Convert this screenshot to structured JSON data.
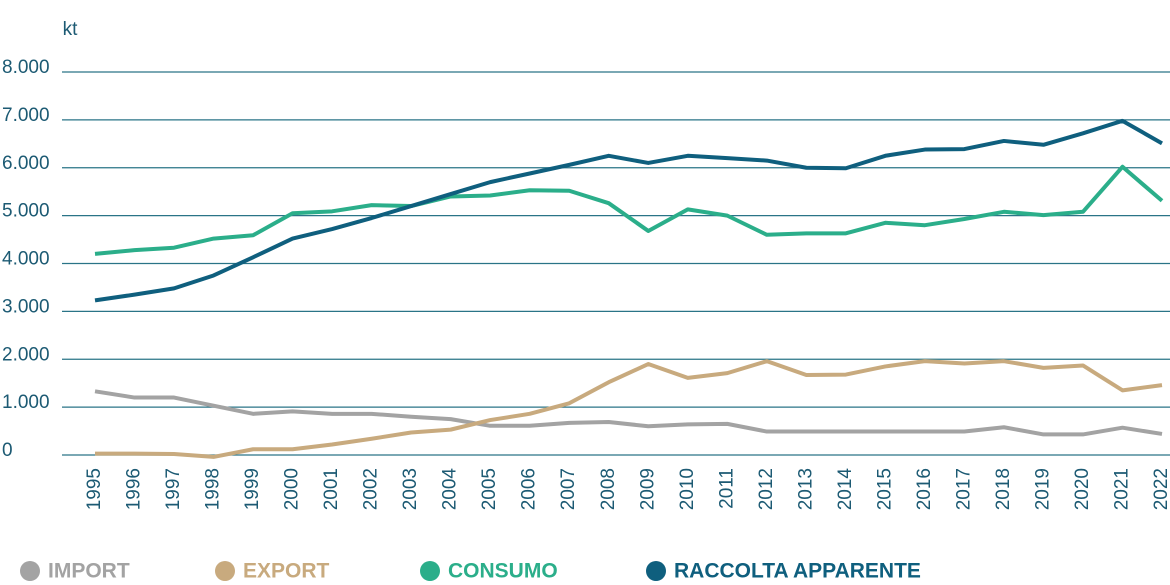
{
  "chart_data": {
    "type": "line",
    "y_label": "kt",
    "categories": [
      "1995",
      "1996",
      "1997",
      "1998",
      "1999",
      "2000",
      "2001",
      "2002",
      "2003",
      "2004",
      "2005",
      "2006",
      "2007",
      "2008",
      "2009",
      "2010",
      "2011",
      "2012",
      "2013",
      "2014",
      "2015",
      "2016",
      "2017",
      "2018",
      "2019",
      "2020",
      "2021",
      "2022"
    ],
    "series": [
      {
        "name": "IMPORT",
        "color": "#a3a3a3",
        "values": [
          1330,
          1200,
          1200,
          1030,
          860,
          910,
          860,
          860,
          800,
          750,
          610,
          610,
          670,
          690,
          600,
          640,
          650,
          490,
          490,
          490,
          490,
          490,
          490,
          580,
          430,
          430,
          570,
          440
        ]
      },
      {
        "name": "EXPORT",
        "color": "#c8aa7e",
        "values": [
          30,
          30,
          20,
          -40,
          120,
          120,
          220,
          340,
          470,
          530,
          730,
          860,
          1080,
          1520,
          1900,
          1610,
          1710,
          1960,
          1670,
          1680,
          1850,
          1960,
          1910,
          1960,
          1820,
          1870,
          1350,
          1460
        ]
      },
      {
        "name": "CONSUMO",
        "color": "#2bae8a",
        "values": [
          4200,
          4280,
          4330,
          4520,
          4590,
          5050,
          5090,
          5220,
          5200,
          5400,
          5420,
          5530,
          5520,
          5260,
          4680,
          5130,
          5000,
          4600,
          4630,
          4630,
          4850,
          4800,
          4930,
          5080,
          5010,
          5080,
          6020,
          5310
        ]
      },
      {
        "name": "RACCOLTA APPARENTE",
        "color": "#0f5f7e",
        "values": [
          3230,
          3350,
          3480,
          3750,
          4130,
          4520,
          4720,
          4950,
          5200,
          5450,
          5700,
          5880,
          6060,
          6250,
          6100,
          6250,
          6200,
          6150,
          6000,
          5990,
          6250,
          6380,
          6390,
          6560,
          6480,
          6720,
          6980,
          6510
        ]
      }
    ],
    "ylim": [
      0,
      8000
    ],
    "yticks": [
      0,
      {
        "value": 1000,
        "label": "1.000"
      },
      {
        "value": 2000,
        "label": "2.000"
      },
      {
        "value": 3000,
        "label": "3.000"
      },
      {
        "value": 4000,
        "label": "4.000"
      },
      {
        "value": 5000,
        "label": "5.000"
      },
      {
        "value": 6000,
        "label": "6.000"
      },
      {
        "value": 7000,
        "label": "7.000"
      },
      {
        "value": 8000,
        "label": "8.000"
      }
    ],
    "grid": true,
    "legend": "bottom"
  }
}
